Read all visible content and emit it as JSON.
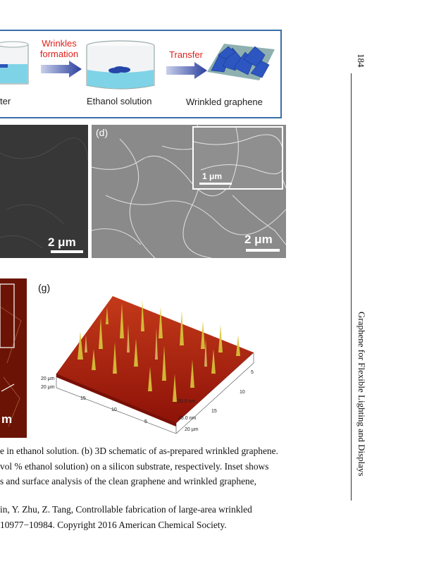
{
  "page": {
    "page_number": "184",
    "running_head": "Graphene for Flexible Lighting and Displays"
  },
  "schematic": {
    "step1_label": "ter",
    "arrow1_label": "Wrinkles\nformation",
    "step2_label": "Ethanol solution",
    "arrow2_label": "Transfer",
    "step3_label": "Wrinkled graphene",
    "colors": {
      "frame": "#3b6ea5",
      "arrow": "#2a3f9e",
      "highlight": "#e0201b",
      "water": "#7fd3e6"
    }
  },
  "panel_c": {
    "scale_label": "2 μm"
  },
  "panel_d": {
    "letter": "(d)",
    "scale_label": "2 μm",
    "inset_scale_label": "1 μm"
  },
  "panel_f": {
    "scale_label": "m"
  },
  "panel_g": {
    "letter": "(g)",
    "ticks_left": [
      "20 μm",
      "20 μm"
    ],
    "ticks_front": [
      "15",
      "10",
      "5"
    ],
    "ticks_right": [
      "5",
      "10",
      "15",
      "20 μm"
    ],
    "z_ticks": [
      "20.0 nm",
      "45.0 nm"
    ]
  },
  "caption": {
    "line1": "e in ethanol solution. (b) 3D schematic of as-prepared wrinkled graphene.",
    "line2": "vol % ethanol solution) on a silicon substrate, respectively. Inset shows",
    "line3": "s and surface analysis of the clean graphene and wrinkled graphene,"
  },
  "reference": {
    "line1": "in, Y. Zhu, Z. Tang, Controllable fabrication of large-area wrinkled",
    "line2": "10977−10984. Copyright 2016 American Chemical Society."
  }
}
